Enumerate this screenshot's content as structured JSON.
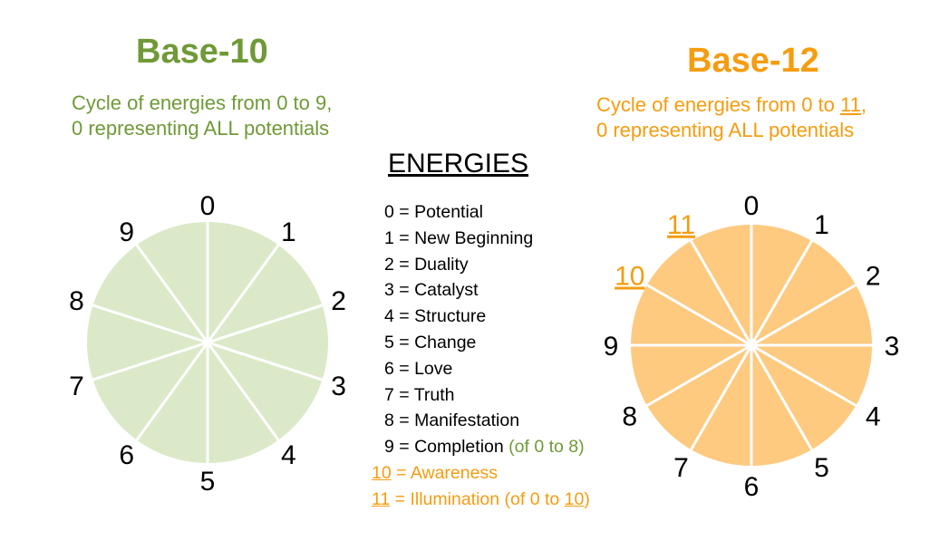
{
  "left": {
    "title": "Base-10",
    "subtitle_line1": "Cycle of energies from 0 to 9,",
    "subtitle_line2": "0 representing ALL potentials",
    "labels": [
      "0",
      "1",
      "2",
      "3",
      "4",
      "5",
      "6",
      "7",
      "8",
      "9"
    ],
    "fill": "#dbe9c8",
    "text_color": "#6f9a37"
  },
  "right": {
    "title": "Base-12",
    "subtitle_line1_pre": "Cycle of energies from 0 to ",
    "subtitle_line1_u": "11",
    "subtitle_line1_post": ",",
    "subtitle_line2": "0 representing ALL potentials",
    "labels": [
      "0",
      "1",
      "2",
      "3",
      "4",
      "5",
      "6",
      "7",
      "8",
      "9",
      "10",
      "11"
    ],
    "underlined_labels": [
      "10",
      "11"
    ],
    "fill": "#fdca80",
    "text_color": "#f59c10"
  },
  "energies": {
    "title": "ENERGIES",
    "items": [
      {
        "num": "0",
        "text": " = Potential"
      },
      {
        "num": "1",
        "text": " = New Beginning"
      },
      {
        "num": "2",
        "text": " = Duality"
      },
      {
        "num": "3",
        "text": " = Catalyst"
      },
      {
        "num": "4",
        "text": " = Structure"
      },
      {
        "num": "5",
        "text": " = Change"
      },
      {
        "num": "6",
        "text": " = Love"
      },
      {
        "num": "7",
        "text": " = Truth"
      },
      {
        "num": "8",
        "text": " = Manifestation"
      },
      {
        "num": "9",
        "text": " = Completion ",
        "note": "(of 0 to 8)"
      },
      {
        "num": "10",
        "text": " = Awareness"
      },
      {
        "num": "11",
        "text": " = Illumination (of 0 to ",
        "note_u": "10",
        "note_end": ")"
      }
    ]
  }
}
